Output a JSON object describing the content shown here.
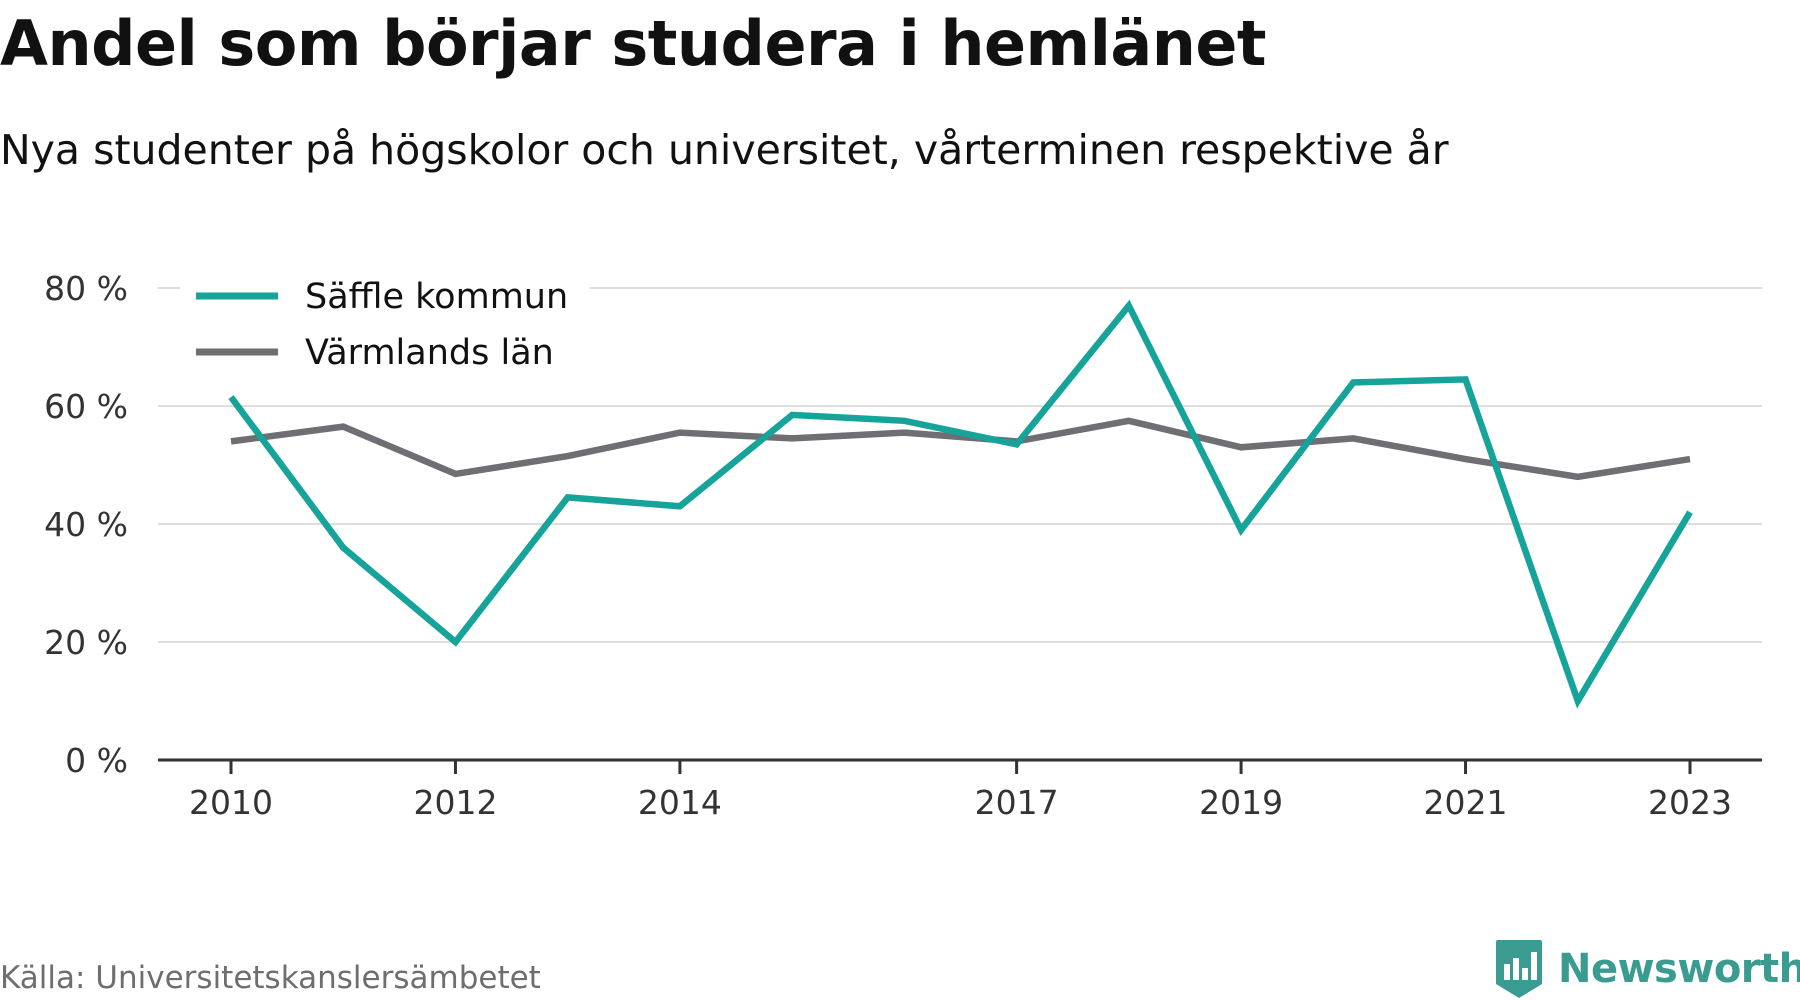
{
  "title": "Andel som börjar studera i hemlänet",
  "subtitle": "Nya studenter på högskolor och universitet, vårterminen respektive år",
  "source": "Källa: Universitetskanslersämbetet",
  "brand": {
    "name": "Newsworthy",
    "logo_icon": "newsworthy-bar-chart-icon",
    "color": "#3a9b91"
  },
  "chart_data": {
    "type": "line",
    "title": "Andel som börjar studera i hemlänet",
    "subtitle": "Nya studenter på högskolor och universitet, vårterminen respektive år",
    "xlabel": "",
    "ylabel": "",
    "x": [
      2010,
      2011,
      2012,
      2013,
      2014,
      2015,
      2016,
      2017,
      2018,
      2019,
      2020,
      2021,
      2022,
      2023
    ],
    "x_ticks": [
      "2010",
      "2012",
      "2014",
      "2017",
      "2019",
      "2021",
      "2023"
    ],
    "y_ticks": [
      "0 %",
      "20 %",
      "40 %",
      "60 %",
      "80 %"
    ],
    "ylim": [
      0,
      80
    ],
    "grid": true,
    "legend_position": "top-left",
    "series": [
      {
        "name": "Säffle kommun",
        "color": "#15a39a",
        "values": [
          61.5,
          36,
          20,
          44.5,
          43,
          58.5,
          57.5,
          53.5,
          77,
          39,
          64,
          64.5,
          10,
          42
        ]
      },
      {
        "name": "Värmlands län",
        "color": "#6e6e73",
        "values": [
          54,
          56.5,
          48.5,
          51.5,
          55.5,
          54.5,
          55.5,
          54,
          57.5,
          53,
          54.5,
          51,
          48,
          51
        ]
      }
    ]
  }
}
